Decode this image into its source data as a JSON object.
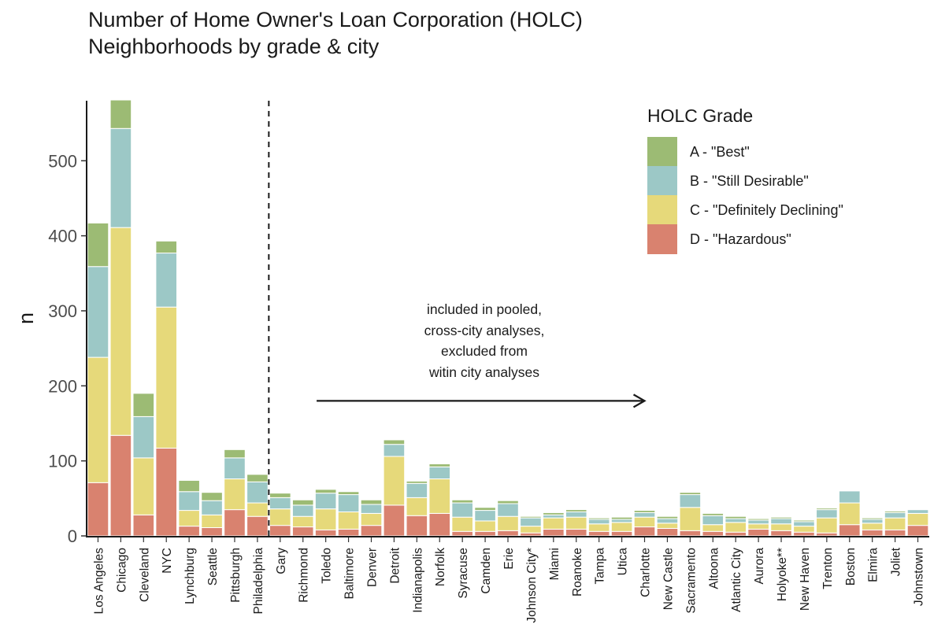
{
  "chart_data": {
    "type": "bar",
    "stacked": true,
    "title": "Number of Home Owner's Loan Corporation (HOLC)\nNeighborhoods by grade & city",
    "xlabel": "",
    "ylabel": "n",
    "ylim": [
      0,
      580
    ],
    "yticks": [
      0,
      100,
      200,
      300,
      400,
      500
    ],
    "grid": false,
    "legend_position": "top-right",
    "legend_title": "HOLC Grade",
    "categories": [
      "Los Angeles",
      "Chicago",
      "Cleveland",
      "NYC",
      "Lynchburg",
      "Seattle",
      "Pittsburgh",
      "Philadelphia",
      "Gary",
      "Richmond",
      "Toledo",
      "Baltimore",
      "Denver",
      "Detroit",
      "Indianapolis",
      "Norfolk",
      "Syracuse",
      "Camden",
      "Erie",
      "Johnson City*",
      "Miami",
      "Roanoke",
      "Tampa",
      "Utica",
      "Charlotte",
      "New Castle",
      "Sacramento",
      "Altoona",
      "Atlantic City",
      "Aurora",
      "Holyoke**",
      "New Haven",
      "Trenton",
      "Boston",
      "Elmira",
      "Joliet",
      "Johnstown"
    ],
    "series": [
      {
        "name": "D - \"Hazardous\"",
        "color": "#d9826f",
        "values": [
          71,
          134,
          28,
          117,
          13,
          11,
          35,
          26,
          14,
          12,
          8,
          9,
          14,
          41,
          27,
          30,
          6,
          6,
          7,
          4,
          9,
          9,
          6,
          6,
          12,
          10,
          7,
          6,
          5,
          9,
          7,
          5,
          4,
          15,
          8,
          8,
          14
        ]
      },
      {
        "name": "C - \"Definitely Declining\"",
        "color": "#e6d97a",
        "values": [
          167,
          277,
          76,
          188,
          21,
          17,
          41,
          18,
          22,
          14,
          28,
          23,
          16,
          65,
          24,
          46,
          19,
          14,
          19,
          9,
          15,
          16,
          10,
          12,
          13,
          7,
          31,
          9,
          13,
          7,
          9,
          8,
          20,
          29,
          9,
          16,
          16
        ]
      },
      {
        "name": "B - \"Still Desirable\"",
        "color": "#9cc8c6",
        "values": [
          121,
          132,
          55,
          72,
          25,
          19,
          28,
          28,
          15,
          15,
          21,
          23,
          12,
          16,
          19,
          16,
          19,
          14,
          17,
          11,
          4,
          7,
          6,
          4,
          6,
          6,
          17,
          12,
          5,
          5,
          7,
          6,
          11,
          16,
          5,
          7,
          5
        ]
      },
      {
        "name": "A - \"Best\"",
        "color": "#9cbb74",
        "values": [
          58,
          38,
          31,
          16,
          15,
          11,
          11,
          10,
          6,
          7,
          5,
          4,
          6,
          6,
          3,
          4,
          4,
          4,
          4,
          2,
          3,
          3,
          2,
          3,
          3,
          3,
          3,
          3,
          3,
          2,
          2,
          2,
          2,
          1,
          2,
          2,
          1
        ]
      }
    ],
    "legend_order": [
      3,
      2,
      1,
      0
    ],
    "separator_after_category": "Philadelphia",
    "annotation": {
      "lines": [
        "included in pooled,",
        "cross-city analyses,",
        "excluded from",
        "witin city analyses"
      ],
      "arrow_from_category": "Toledo",
      "arrow_to_category": "Charlotte",
      "arrow_level": 180
    }
  }
}
